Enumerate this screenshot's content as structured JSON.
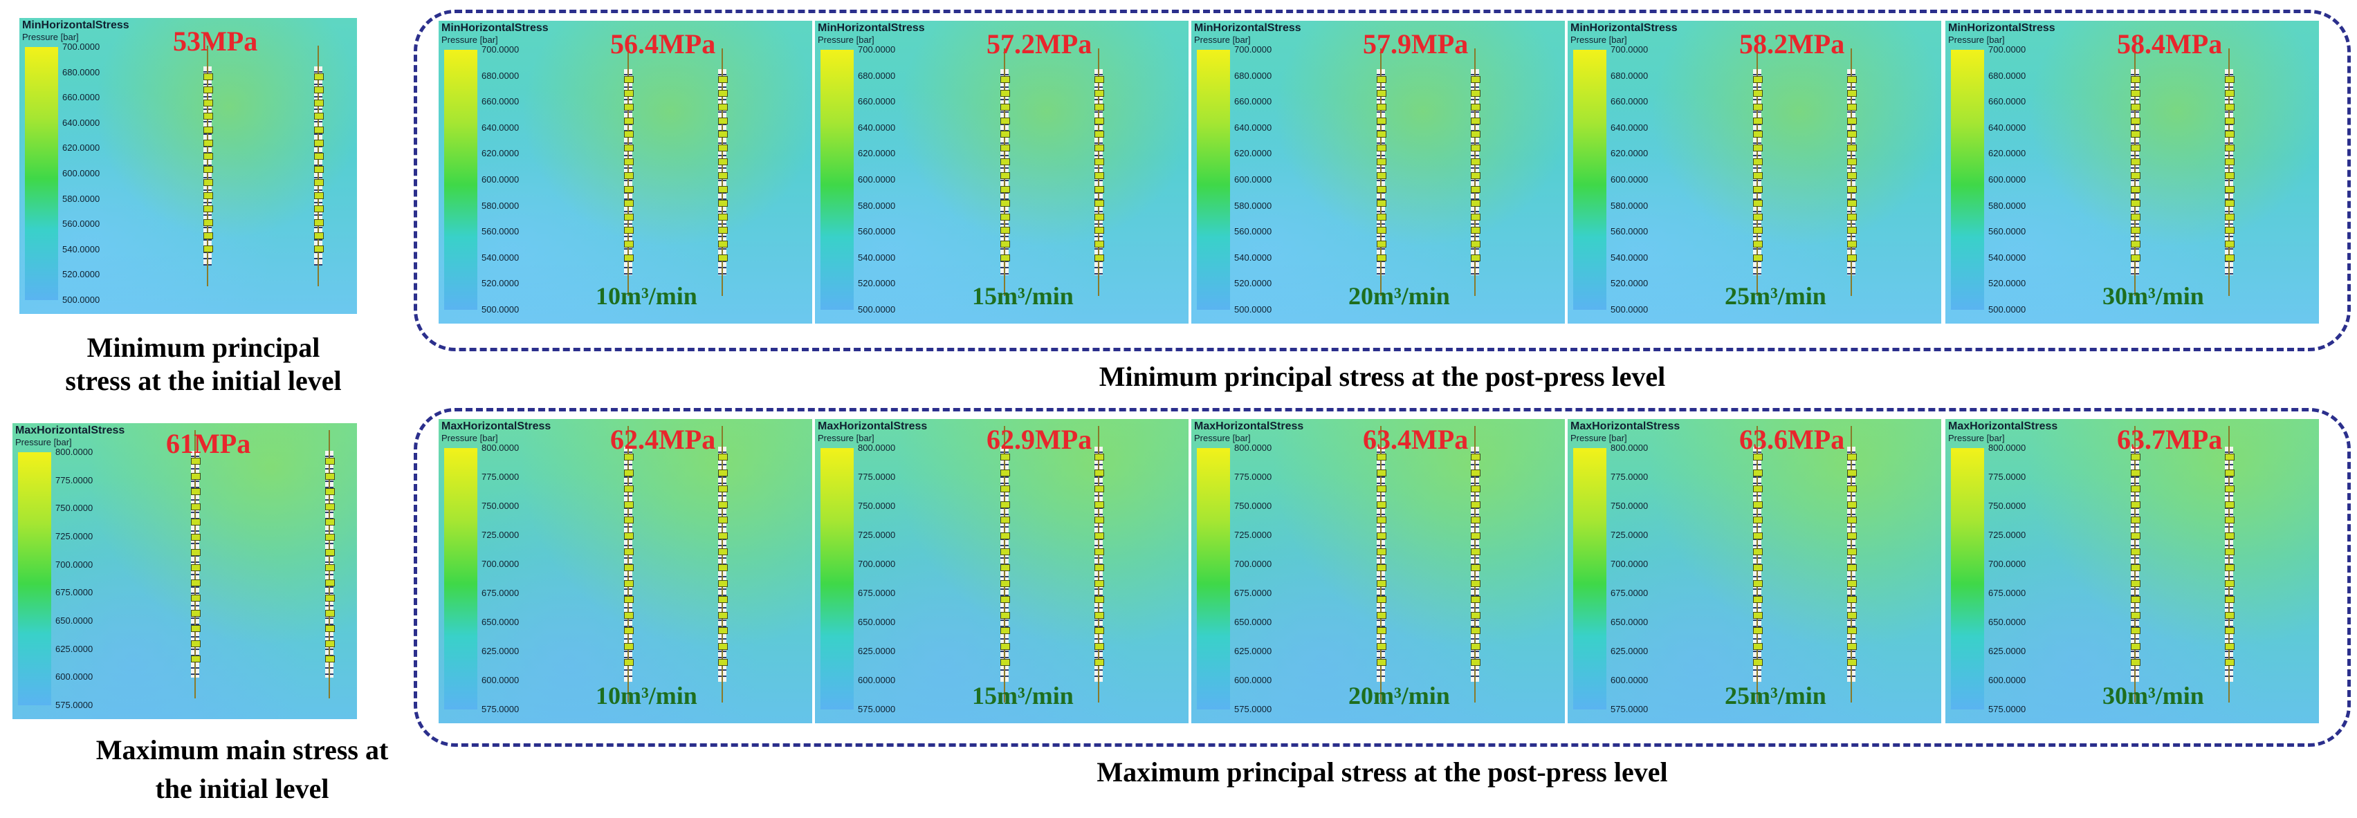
{
  "captions": {
    "min_initial_line1": "Minimum principal",
    "min_initial_line2": "stress at the initial level",
    "min_post": "Minimum principal stress at the post-press level",
    "max_initial_line1": "Maximum main stress at",
    "max_initial_line2": "the initial level",
    "max_post": "Maximum principal stress at the post-press level"
  },
  "min_row": {
    "title": "MinHorizontalStress",
    "unit": "Pressure [bar]",
    "ticks": [
      "700.0000",
      "680.0000",
      "660.0000",
      "640.0000",
      "620.0000",
      "600.0000",
      "580.0000",
      "560.0000",
      "540.0000",
      "520.0000",
      "500.0000"
    ],
    "initial_stress": "53MPa",
    "panels": [
      {
        "stress": "56.4MPa",
        "rate": "10m³/min"
      },
      {
        "stress": "57.2MPa",
        "rate": "15m³/min"
      },
      {
        "stress": "57.9MPa",
        "rate": "20m³/min"
      },
      {
        "stress": "58.2MPa",
        "rate": "25m³/min"
      },
      {
        "stress": "58.4MPa",
        "rate": "30m³/min"
      }
    ]
  },
  "max_row": {
    "title": "MaxHorizontalStress",
    "unit": "Pressure [bar]",
    "ticks": [
      "800.0000",
      "775.0000",
      "750.0000",
      "725.0000",
      "700.0000",
      "675.0000",
      "650.0000",
      "625.0000",
      "600.0000",
      "575.0000"
    ],
    "initial_stress": "61MPa",
    "panels": [
      {
        "stress": "62.4MPa",
        "rate": "10m³/min"
      },
      {
        "stress": "62.9MPa",
        "rate": "15m³/min"
      },
      {
        "stress": "63.4MPa",
        "rate": "20m³/min"
      },
      {
        "stress": "63.6MPa",
        "rate": "25m³/min"
      },
      {
        "stress": "63.7MPa",
        "rate": "30m³/min"
      }
    ]
  }
}
